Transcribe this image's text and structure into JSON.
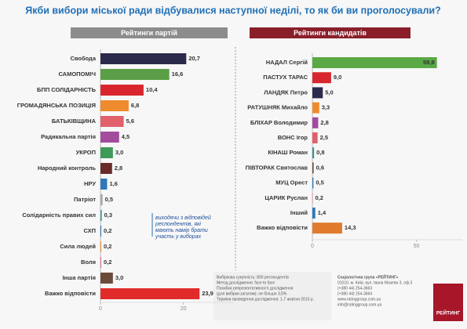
{
  "title": "Якби вибори міської ради відбувалися наступної неділі, то як би ви проголосували?",
  "chart_data": [
    {
      "type": "hbar",
      "title": "Рейтинги партій",
      "categories": [
        "Свобода",
        "САМОПОМІЧ",
        "БПП СОЛІДАРНІСТЬ",
        "ГРОМАДЯНСЬКА ПОЗИЦІЯ",
        "БАТЬКІВЩИНА",
        "Радикальна партія",
        "УКРОП",
        "Народний контроль",
        "НРУ",
        "Патріот",
        "Солідарність правих сил",
        "СХП",
        "Сила людей",
        "Воля",
        "Інша партія",
        "Важко відповісти"
      ],
      "values": [
        20.7,
        16.6,
        10.4,
        6.8,
        5.6,
        4.5,
        3.0,
        2.8,
        1.6,
        0.5,
        0.3,
        0.2,
        0.2,
        0.2,
        3.0,
        23.9
      ],
      "value_labels": [
        "20,7",
        "16,6",
        "10,4",
        "6,8",
        "5,6",
        "4,5",
        "3,0",
        "2,8",
        "1,6",
        "0,5",
        "0,3",
        "0,2",
        "0,2",
        "0,2",
        "3,0",
        "23,9"
      ],
      "colors": [
        "#2b2a4a",
        "#5a9e47",
        "#d9262e",
        "#ef8a2e",
        "#e0606b",
        "#a24c9e",
        "#3d9a58",
        "#6b2a2a",
        "#2f78b8",
        "#a8a8a8",
        "#3a8f95",
        "#2f78b8",
        "#ef8a2e",
        "#e0708b",
        "#6b4a3a",
        "#e12a2a"
      ],
      "xlim": [
        0,
        32
      ],
      "xticks": [
        0,
        20
      ],
      "annotation": "виходячи з відповідей респондентів, які мають намір брати участь у виборах"
    },
    {
      "type": "hbar",
      "title": "Рейтинги кандидатів",
      "categories": [
        "НАДАЛ Сергій",
        "ПАСТУХ ТАРАС",
        "ЛАНДЯК Петро",
        "РАТУШНЯК Михайло",
        "БЛІХАР Володимир",
        "ВОНС Ігор",
        "КІНАШ Роман",
        "ПІВТОРАК Святослав",
        "МУЦ Орест",
        "ЦАРИК Руслан",
        "Інший",
        "Важко відповісти"
      ],
      "values": [
        59.8,
        9.0,
        5.0,
        3.3,
        2.8,
        2.5,
        0.8,
        0.6,
        0.5,
        0.2,
        1.4,
        14.3
      ],
      "value_labels": [
        "59,8",
        "9,0",
        "5,0",
        "3,3",
        "2,8",
        "2,5",
        "0,8",
        "0,6",
        "0,5",
        "0,2",
        "1,4",
        "14,3"
      ],
      "colors": [
        "#5aa846",
        "#d9262e",
        "#2b2a4a",
        "#ef8a2e",
        "#a24c9e",
        "#e0606b",
        "#3a8f95",
        "#6b4a3a",
        "#2f78b8",
        "#e0708b",
        "#2f78b8",
        "#e07b2e"
      ],
      "xlim": [
        0,
        72
      ],
      "xticks": [
        0,
        50
      ]
    }
  ],
  "footer": {
    "left": [
      "Вибіркова сукупність: 800 респондентів",
      "Метод дослідження: face to face",
      "Похибка репрезентативності дослідження",
      "(для вибірки загалом): не більше 3,5%",
      "Терміни проведення дослідження: 1-7 жовтня 2015 р."
    ],
    "right": [
      "Соціологічна група «РЕЙТИНГ»",
      "01010, м. Київ, вул. Івана Мазепи 3, оф.3",
      "(+380 44) 254-3663",
      "(+380 44) 254-3664",
      "www.ratinggroup.com.ua",
      "info@ratinggroup.com.ua"
    ],
    "logo": "РЕЙТИНГ"
  }
}
